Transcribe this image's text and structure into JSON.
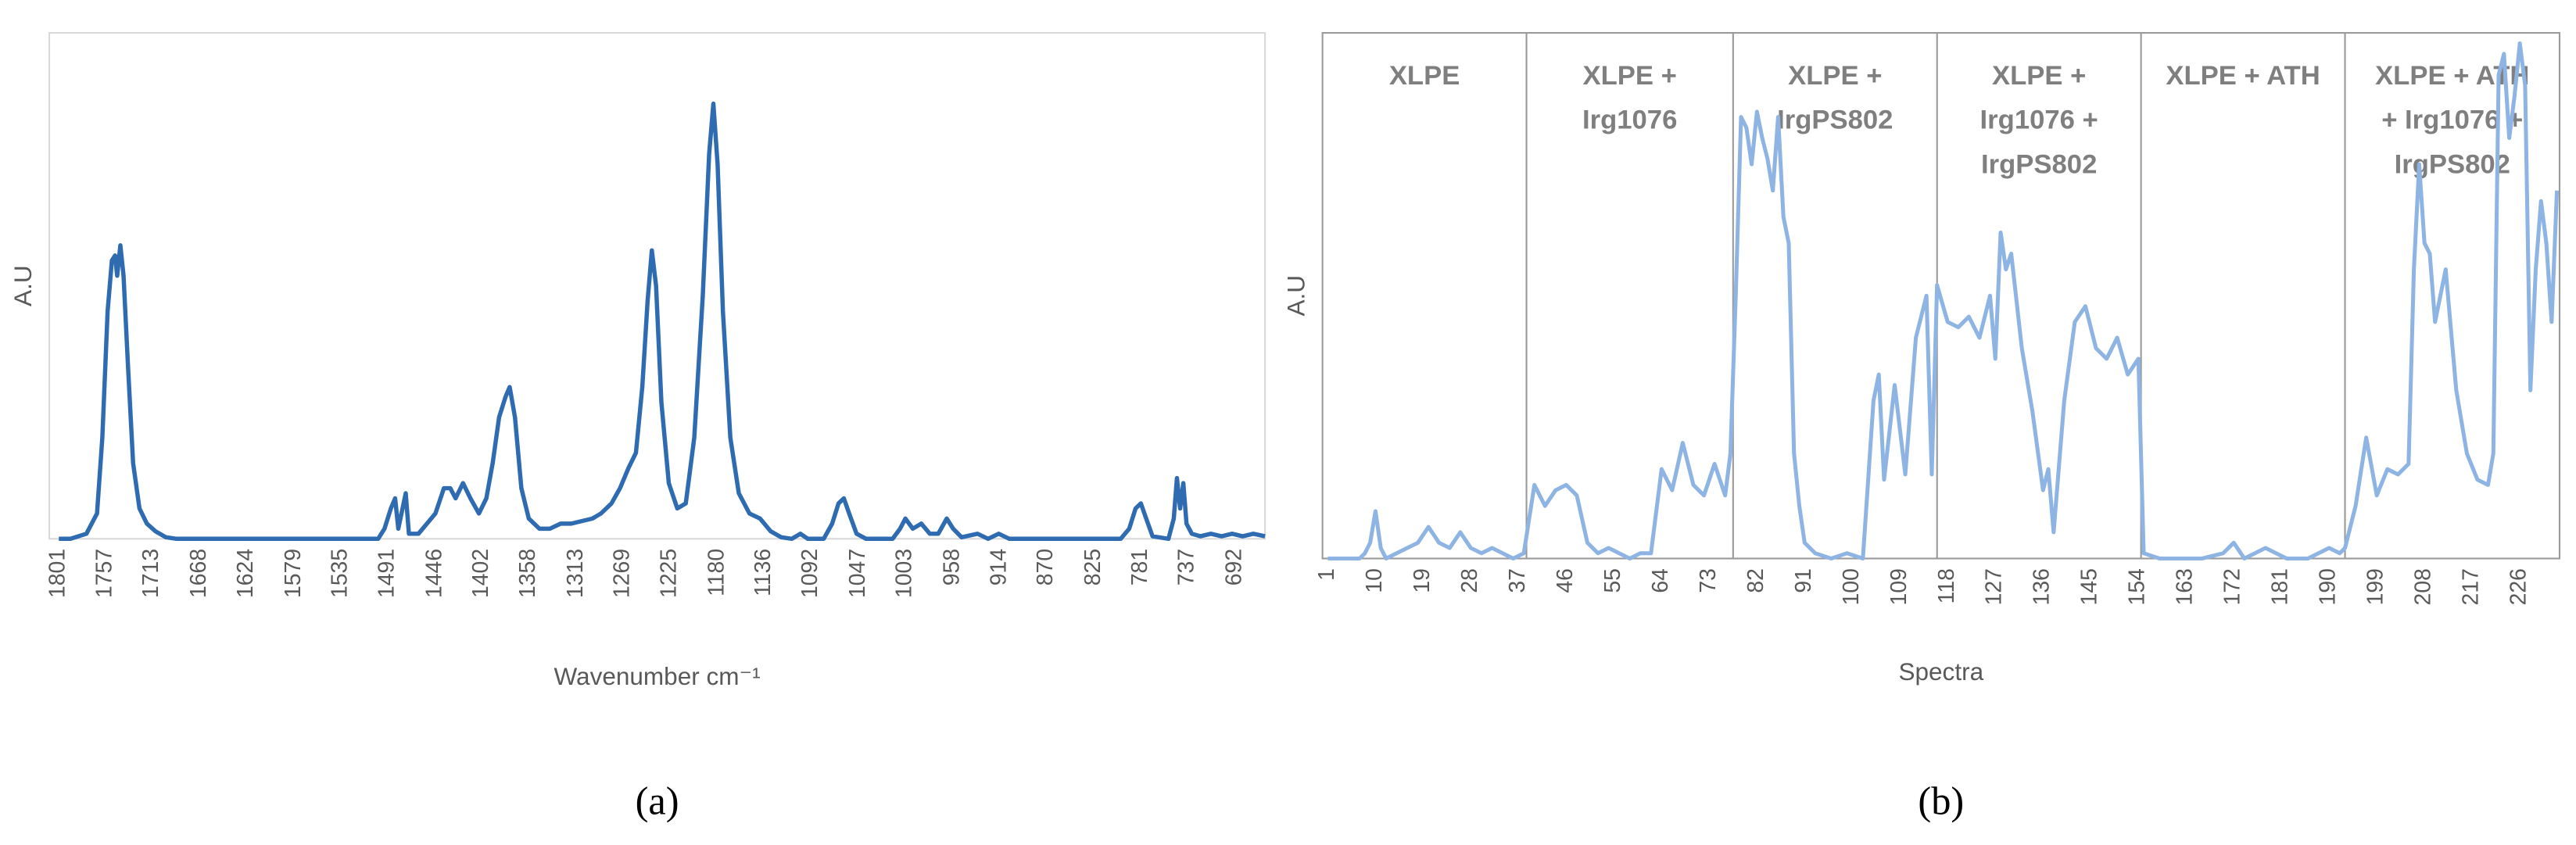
{
  "chart_data": [
    {
      "type": "line",
      "xlabel": "Wavenumber cm⁻¹",
      "ylabel": "A.U",
      "panel_label": "(a)",
      "xlim": [
        1810,
        664
      ],
      "ylim": [
        0,
        1
      ],
      "xticks": [
        1801,
        1757,
        1713,
        1668,
        1624,
        1579,
        1535,
        1491,
        1446,
        1402,
        1358,
        1313,
        1269,
        1225,
        1180,
        1136,
        1092,
        1047,
        1003,
        958,
        914,
        870,
        825,
        781,
        737,
        692
      ],
      "series": [
        {
          "color": "#2e6bb0",
          "x": [
            1801,
            1790,
            1775,
            1765,
            1760,
            1755,
            1751,
            1748,
            1746,
            1743,
            1740,
            1736,
            1731,
            1725,
            1718,
            1710,
            1700,
            1690,
            1500,
            1494,
            1488,
            1484,
            1481,
            1477,
            1474,
            1471,
            1462,
            1454,
            1446,
            1438,
            1432,
            1427,
            1420,
            1413,
            1405,
            1398,
            1392,
            1386,
            1380,
            1376,
            1371,
            1365,
            1358,
            1348,
            1338,
            1328,
            1318,
            1308,
            1298,
            1290,
            1280,
            1272,
            1264,
            1257,
            1251,
            1246,
            1242,
            1238,
            1233,
            1226,
            1218,
            1210,
            1202,
            1194,
            1188,
            1184,
            1180,
            1175,
            1168,
            1160,
            1150,
            1140,
            1130,
            1120,
            1110,
            1102,
            1095,
            1080,
            1072,
            1066,
            1061,
            1056,
            1049,
            1040,
            1015,
            1008,
            1003,
            996,
            988,
            980,
            972,
            964,
            958,
            950,
            935,
            925,
            915,
            905,
            800,
            792,
            786,
            781,
            776,
            770,
            755,
            750,
            747,
            744,
            741,
            738,
            733,
            725,
            715,
            705,
            695,
            685,
            675,
            664
          ],
          "values": [
            0,
            0,
            0.01,
            0.05,
            0.2,
            0.45,
            0.55,
            0.56,
            0.52,
            0.58,
            0.52,
            0.35,
            0.15,
            0.06,
            0.03,
            0.015,
            0.003,
            0,
            0,
            0.02,
            0.06,
            0.08,
            0.02,
            0.06,
            0.09,
            0.01,
            0.01,
            0.03,
            0.05,
            0.1,
            0.1,
            0.08,
            0.11,
            0.08,
            0.05,
            0.08,
            0.15,
            0.24,
            0.28,
            0.3,
            0.24,
            0.1,
            0.04,
            0.02,
            0.02,
            0.03,
            0.03,
            0.035,
            0.04,
            0.05,
            0.07,
            0.1,
            0.14,
            0.17,
            0.3,
            0.47,
            0.57,
            0.5,
            0.27,
            0.11,
            0.06,
            0.07,
            0.2,
            0.48,
            0.76,
            0.86,
            0.74,
            0.45,
            0.2,
            0.09,
            0.05,
            0.04,
            0.015,
            0.003,
            0,
            0.01,
            0,
            0,
            0.03,
            0.07,
            0.08,
            0.05,
            0.01,
            0,
            0,
            0.02,
            0.04,
            0.02,
            0.03,
            0.01,
            0.01,
            0.04,
            0.02,
            0.003,
            0.01,
            0,
            0.01,
            0,
            0,
            0.02,
            0.06,
            0.07,
            0.04,
            0.005,
            0,
            0.04,
            0.12,
            0.06,
            0.11,
            0.03,
            0.01,
            0.005,
            0.01,
            0.005,
            0.01,
            0.005,
            0.01,
            0.005
          ]
        }
      ]
    },
    {
      "type": "line",
      "xlabel": "Spectra",
      "ylabel": "A.U",
      "panel_label": "(b)",
      "xlim": [
        0,
        233.5
      ],
      "ylim": [
        0,
        1
      ],
      "xticks": [
        1,
        10,
        19,
        28,
        37,
        46,
        55,
        64,
        73,
        82,
        91,
        100,
        109,
        118,
        127,
        136,
        145,
        154,
        163,
        172,
        181,
        190,
        199,
        208,
        217,
        226
      ],
      "dividers": [
        38.5,
        77.5,
        116,
        154.5,
        193
      ],
      "regions": [
        {
          "label": [
            "XLPE"
          ]
        },
        {
          "label": [
            "XLPE +",
            "Irg1076"
          ]
        },
        {
          "label": [
            "XLPE +",
            "IrgPS802"
          ]
        },
        {
          "label": [
            "XLPE +",
            "Irg1076 +",
            "IrgPS802"
          ]
        },
        {
          "label": [
            "XLPE + ATH"
          ]
        },
        {
          "label": [
            "XLPE + ATH",
            "+  Irg1076 +",
            "IrgPS802"
          ]
        }
      ],
      "series": [
        {
          "color": "#8eb4e3",
          "x": [
            1,
            3,
            5,
            7,
            8,
            9,
            10,
            11,
            12,
            14,
            16,
            18,
            20,
            22,
            24,
            26,
            28,
            30,
            32,
            34,
            36,
            38,
            40,
            42,
            44,
            46,
            48,
            50,
            52,
            54,
            56,
            58,
            60,
            62,
            64,
            66,
            68,
            70,
            72,
            74,
            76,
            77,
            78,
            79,
            80,
            81,
            82,
            83,
            84,
            85,
            86,
            87,
            88,
            89,
            90,
            91,
            93,
            96,
            99,
            102,
            104,
            105,
            106,
            108,
            110,
            112,
            114,
            115,
            116,
            118,
            120,
            122,
            124,
            126,
            127,
            128,
            129,
            130,
            132,
            134,
            136,
            137,
            138,
            140,
            142,
            144,
            146,
            148,
            150,
            152,
            154,
            155,
            158,
            162,
            166,
            170,
            172,
            174,
            178,
            182,
            186,
            190,
            192,
            193,
            195,
            197,
            199,
            201,
            203,
            205,
            206,
            207,
            208,
            209,
            210,
            212,
            214,
            216,
            218,
            220,
            221,
            222,
            223,
            224,
            225,
            226,
            227,
            228,
            229,
            230,
            231,
            232,
            233
          ],
          "values": [
            0,
            0,
            0,
            0,
            0.01,
            0.03,
            0.09,
            0.02,
            0,
            0.01,
            0.02,
            0.03,
            0.06,
            0.03,
            0.02,
            0.05,
            0.02,
            0.01,
            0.02,
            0.01,
            0,
            0.01,
            0.14,
            0.1,
            0.13,
            0.14,
            0.12,
            0.03,
            0.01,
            0.02,
            0.01,
            0,
            0.01,
            0.01,
            0.17,
            0.13,
            0.22,
            0.14,
            0.12,
            0.18,
            0.12,
            0.2,
            0.5,
            0.84,
            0.82,
            0.75,
            0.85,
            0.8,
            0.76,
            0.7,
            0.84,
            0.65,
            0.6,
            0.2,
            0.1,
            0.03,
            0.01,
            0,
            0.01,
            0,
            0.3,
            0.35,
            0.15,
            0.33,
            0.16,
            0.42,
            0.5,
            0.16,
            0.52,
            0.45,
            0.44,
            0.46,
            0.42,
            0.5,
            0.38,
            0.62,
            0.55,
            0.58,
            0.4,
            0.28,
            0.13,
            0.17,
            0.05,
            0.3,
            0.45,
            0.48,
            0.4,
            0.38,
            0.42,
            0.35,
            0.38,
            0.01,
            0,
            0,
            0,
            0.01,
            0.03,
            0,
            0.02,
            0,
            0,
            0.02,
            0.01,
            0.02,
            0.1,
            0.23,
            0.12,
            0.17,
            0.16,
            0.18,
            0.55,
            0.75,
            0.6,
            0.58,
            0.45,
            0.55,
            0.32,
            0.2,
            0.15,
            0.14,
            0.2,
            0.92,
            0.96,
            0.8,
            0.88,
            0.98,
            0.9,
            0.32,
            0.55,
            0.68,
            0.6,
            0.45,
            0.7
          ]
        }
      ]
    }
  ]
}
